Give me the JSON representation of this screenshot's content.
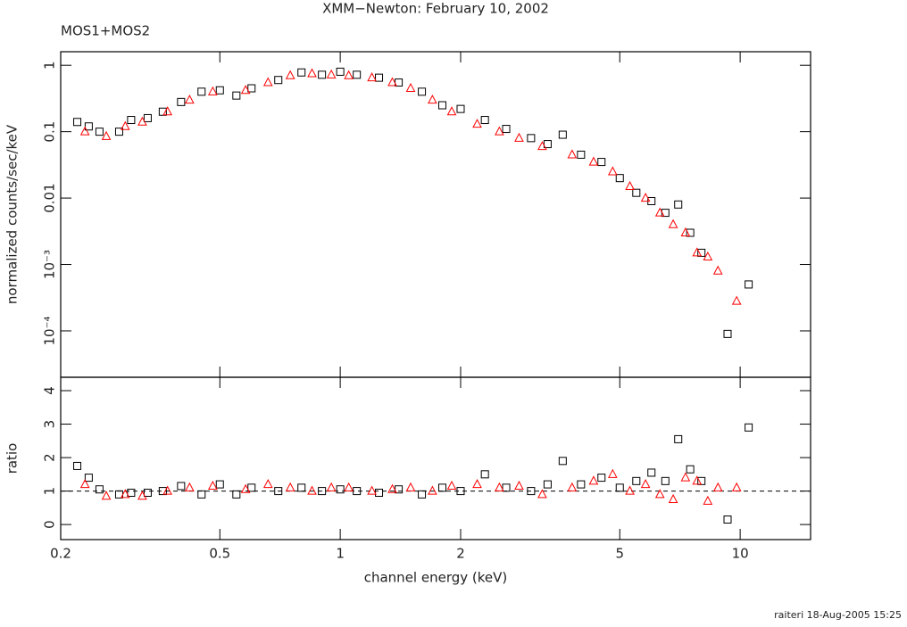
{
  "footer": "raiteri 18-Aug-2005 15:25",
  "chart_data": [
    {
      "type": "scatter",
      "title": "XMM−Newton: February 10, 2002",
      "annotation": "MOS1+MOS2",
      "ylabel": "normalized counts/sec/keV",
      "xlog": true,
      "ylog": true,
      "xlim": [
        0.2,
        15
      ],
      "ylim": [
        2e-05,
        1.6
      ],
      "xticks": [
        0.2,
        0.5,
        1,
        2,
        5,
        10
      ],
      "xtick_labels": false,
      "yticks": [
        1,
        0.1,
        0.01,
        {
          "value": 0.001,
          "label": "10⁻³"
        },
        {
          "value": 0.0001,
          "label": "10⁻⁴"
        }
      ],
      "series": [
        {
          "color": "#000000",
          "marker": "square",
          "x": [
            0.22,
            0.235,
            0.25,
            0.28,
            0.3,
            0.33,
            0.36,
            0.4,
            0.45,
            0.5,
            0.55,
            0.6,
            0.7,
            0.8,
            0.9,
            1.0,
            1.1,
            1.25,
            1.4,
            1.6,
            1.8,
            2.0,
            2.3,
            2.6,
            3.0,
            3.3,
            3.6,
            4.0,
            4.5,
            5.0,
            5.5,
            6.0,
            6.5,
            7.0,
            7.5,
            8.0,
            9.3,
            10.5
          ],
          "values": [
            0.14,
            0.12,
            0.1,
            0.1,
            0.15,
            0.16,
            0.2,
            0.28,
            0.4,
            0.42,
            0.35,
            0.45,
            0.6,
            0.78,
            0.72,
            0.8,
            0.72,
            0.65,
            0.55,
            0.4,
            0.25,
            0.22,
            0.15,
            0.11,
            0.08,
            0.065,
            0.09,
            0.045,
            0.035,
            0.02,
            0.012,
            0.009,
            0.006,
            0.008,
            0.003,
            0.0015,
            9e-05,
            0.0005
          ]
        },
        {
          "color": "#ff0000",
          "marker": "triangle",
          "x": [
            0.23,
            0.26,
            0.29,
            0.32,
            0.37,
            0.42,
            0.48,
            0.58,
            0.66,
            0.75,
            0.85,
            0.95,
            1.05,
            1.2,
            1.35,
            1.5,
            1.7,
            1.9,
            2.2,
            2.5,
            2.8,
            3.2,
            3.8,
            4.3,
            4.8,
            5.3,
            5.8,
            6.3,
            6.8,
            7.3,
            7.8,
            8.3,
            8.8,
            9.8
          ],
          "values": [
            0.1,
            0.085,
            0.12,
            0.14,
            0.2,
            0.3,
            0.4,
            0.42,
            0.55,
            0.7,
            0.75,
            0.72,
            0.7,
            0.65,
            0.55,
            0.45,
            0.3,
            0.2,
            0.13,
            0.1,
            0.08,
            0.06,
            0.045,
            0.035,
            0.025,
            0.015,
            0.01,
            0.006,
            0.004,
            0.003,
            0.0015,
            0.0013,
            0.0008,
            0.00028
          ]
        }
      ]
    },
    {
      "type": "scatter",
      "ylabel": "ratio",
      "xlabel": "channel energy (keV)",
      "xlog": true,
      "ylog": false,
      "xlim": [
        0.2,
        15
      ],
      "ylim": [
        -0.45,
        4.4
      ],
      "xticks": [
        0.2,
        0.5,
        1,
        2,
        5,
        10
      ],
      "xtick_labels": true,
      "yticks": [
        0,
        1,
        2,
        3,
        4
      ],
      "hline": 1,
      "series": [
        {
          "color": "#000000",
          "marker": "square",
          "x": [
            0.22,
            0.235,
            0.25,
            0.28,
            0.3,
            0.33,
            0.36,
            0.4,
            0.45,
            0.5,
            0.55,
            0.6,
            0.7,
            0.8,
            0.9,
            1.0,
            1.1,
            1.25,
            1.4,
            1.6,
            1.8,
            2.0,
            2.3,
            2.6,
            3.0,
            3.3,
            3.6,
            4.0,
            4.5,
            5.0,
            5.5,
            6.0,
            6.5,
            7.0,
            7.5,
            8.0,
            9.3,
            10.5
          ],
          "values": [
            1.75,
            1.4,
            1.05,
            0.9,
            0.95,
            0.95,
            1.0,
            1.15,
            0.9,
            1.2,
            0.9,
            1.1,
            1.0,
            1.1,
            1.0,
            1.05,
            1.0,
            0.95,
            1.05,
            0.9,
            1.1,
            1.0,
            1.5,
            1.1,
            1.0,
            1.2,
            1.9,
            1.2,
            1.4,
            1.1,
            1.3,
            1.55,
            1.3,
            2.55,
            1.65,
            1.3,
            0.15,
            2.9
          ]
        },
        {
          "color": "#ff0000",
          "marker": "triangle",
          "x": [
            0.23,
            0.26,
            0.29,
            0.32,
            0.37,
            0.42,
            0.48,
            0.58,
            0.66,
            0.75,
            0.85,
            0.95,
            1.05,
            1.2,
            1.35,
            1.5,
            1.7,
            1.9,
            2.2,
            2.5,
            2.8,
            3.2,
            3.8,
            4.3,
            4.8,
            5.3,
            5.8,
            6.3,
            6.8,
            7.3,
            7.8,
            8.3,
            8.8,
            9.8
          ],
          "values": [
            1.2,
            0.85,
            0.9,
            0.85,
            1.0,
            1.1,
            1.15,
            1.05,
            1.2,
            1.1,
            1.0,
            1.1,
            1.1,
            1.0,
            1.05,
            1.1,
            1.0,
            1.15,
            1.2,
            1.1,
            1.15,
            0.9,
            1.1,
            1.3,
            1.5,
            1.0,
            1.2,
            0.9,
            0.75,
            1.4,
            1.3,
            0.7,
            1.1,
            1.1
          ]
        }
      ]
    }
  ]
}
